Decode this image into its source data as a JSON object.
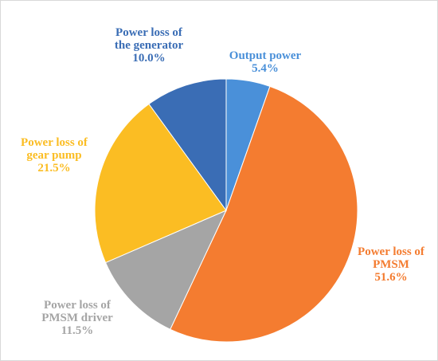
{
  "chart_data": {
    "type": "pie",
    "title": "",
    "start_angle_deg": 0,
    "direction": "clockwise",
    "slices": [
      {
        "name": "Output power",
        "value": 5.4,
        "percent_label": "5.4%",
        "label_lines": [
          "Output power",
          "5.4%"
        ],
        "color": "#4a90d9",
        "label_color": "#4a90d9"
      },
      {
        "name": "Power loss of PMSM",
        "value": 51.6,
        "percent_label": "51.6%",
        "label_lines": [
          "Power loss of",
          "PMSM",
          "51.6%"
        ],
        "color": "#f47c30",
        "label_color": "#f47c30"
      },
      {
        "name": "Power loss of PMSM driver",
        "value": 11.5,
        "percent_label": "11.5%",
        "label_lines": [
          "Power loss of",
          "PMSM driver",
          "11.5%"
        ],
        "color": "#a5a5a5",
        "label_color": "#a5a5a5"
      },
      {
        "name": "Power loss of gear pump",
        "value": 21.5,
        "percent_label": "21.5%",
        "label_lines": [
          "Power loss of",
          "gear pump",
          "21.5%"
        ],
        "color": "#fbbd23",
        "label_color": "#fbbd23"
      },
      {
        "name": "Power loss of the generator",
        "value": 10.0,
        "percent_label": "10.0%",
        "label_lines": [
          "Power loss of",
          "the generator",
          "10.0%"
        ],
        "color": "#3a6db5",
        "label_color": "#3a6db5"
      }
    ]
  }
}
